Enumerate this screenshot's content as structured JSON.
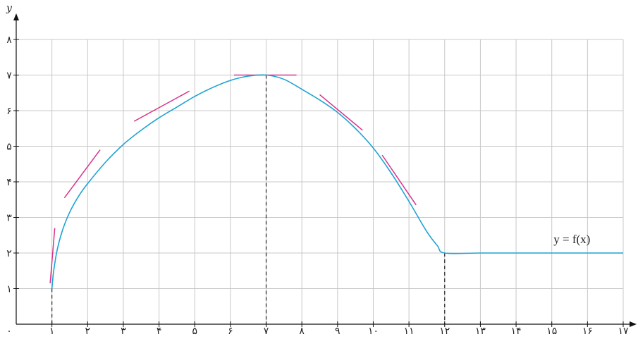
{
  "chart_data": {
    "type": "line",
    "xlabel": "",
    "ylabel": "y",
    "xlim": [
      0,
      17
    ],
    "ylim": [
      0,
      8
    ],
    "grid": true,
    "x_ticks": [
      0,
      1,
      2,
      3,
      4,
      5,
      6,
      7,
      8,
      9,
      10,
      11,
      12,
      13,
      14,
      15,
      16,
      17
    ],
    "x_tick_labels": [
      "۰",
      "۱",
      "۲",
      "۳",
      "۴",
      "۵",
      "۶",
      "۷",
      "۸",
      "۹",
      "۱۰",
      "۱۱",
      "۱۲",
      "۱۳",
      "۱۴",
      "۱۵",
      "۱۶",
      "۱۷"
    ],
    "y_ticks": [
      1,
      2,
      3,
      4,
      5,
      6,
      7,
      8
    ],
    "y_tick_labels": [
      "۱",
      "۲",
      "۳",
      "۴",
      "۵",
      "۶",
      "۷",
      "۸"
    ],
    "curve_label": "y = f(x)",
    "curve_color": "#1fa3d6",
    "tangent_color": "#d6338a",
    "grid_color": "#c8c8c8",
    "series": [
      {
        "x": [
          1,
          1.05,
          1.15,
          1.3,
          1.5,
          1.75,
          2,
          2.5,
          3,
          3.5,
          4,
          4.5,
          5,
          5.5,
          6,
          6.5,
          7,
          7.5,
          8,
          8.5,
          9,
          9.5,
          10,
          10.5,
          11,
          11.5,
          11.8,
          12,
          13,
          14,
          15,
          16,
          17
        ],
        "y": [
          1,
          1.5,
          2.1,
          2.65,
          3.15,
          3.6,
          3.95,
          4.55,
          5.05,
          5.45,
          5.8,
          6.1,
          6.4,
          6.65,
          6.85,
          6.97,
          7.0,
          6.88,
          6.6,
          6.3,
          5.95,
          5.5,
          4.95,
          4.25,
          3.45,
          2.6,
          2.2,
          2.0,
          2.0,
          2.0,
          2.0,
          2.0,
          2.0
        ]
      }
    ],
    "tangents": [
      {
        "x1": 0.95,
        "y1": 1.15,
        "x2": 1.08,
        "y2": 2.7
      },
      {
        "x1": 1.35,
        "y1": 3.55,
        "x2": 2.35,
        "y2": 4.9
      },
      {
        "x1": 3.3,
        "y1": 5.7,
        "x2": 4.85,
        "y2": 6.55
      },
      {
        "x1": 6.1,
        "y1": 7.0,
        "x2": 7.85,
        "y2": 7.0
      },
      {
        "x1": 8.5,
        "y1": 6.45,
        "x2": 9.7,
        "y2": 5.45
      },
      {
        "x1": 10.25,
        "y1": 4.75,
        "x2": 11.2,
        "y2": 3.35
      }
    ],
    "dashed_markers": [
      {
        "x": 1,
        "y": 1
      },
      {
        "x": 7,
        "y": 7
      },
      {
        "x": 12,
        "y": 2
      }
    ]
  }
}
